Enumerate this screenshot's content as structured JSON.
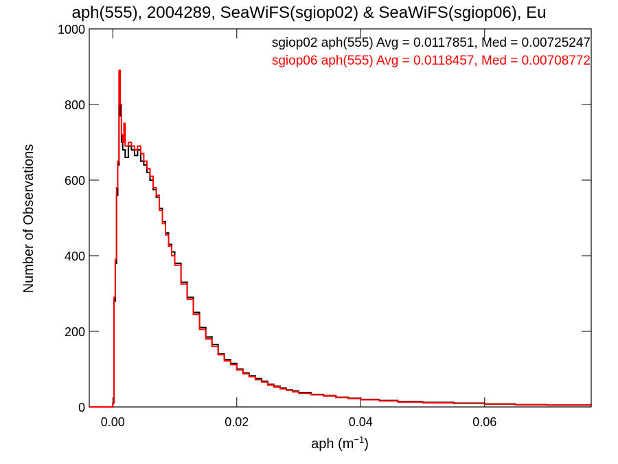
{
  "page": {
    "title": "aph(555), 2004289, SeaWiFS(sgiop02) & SeaWiFS(sgiop06), Eu"
  },
  "chart_data": {
    "type": "line",
    "style": "histogram-step",
    "xlabel": "aph (m",
    "xlabel_sup": "−1",
    "xlabel_close": ")",
    "ylabel": "Number of Observations",
    "xlim": [
      -0.0038,
      0.0772
    ],
    "ylim": [
      0,
      1000
    ],
    "x_ticks": [
      0.0,
      0.02,
      0.04,
      0.06
    ],
    "x_tick_labels": [
      "0.00",
      "0.02",
      "0.04",
      "0.06"
    ],
    "y_ticks": [
      0,
      200,
      400,
      600,
      800,
      1000
    ],
    "y_tick_labels": [
      "0",
      "200",
      "400",
      "600",
      "800",
      "1000"
    ],
    "grid": false,
    "legend_position": "top-right",
    "series": [
      {
        "name": "sgiop02",
        "color": "#000000",
        "stats_label": "sgiop02 aph(555) Avg = 0.0117851, Med = 0.00725247",
        "x": [
          -0.0038,
          0.0,
          0.0002,
          0.0004,
          0.0006,
          0.0008,
          0.001,
          0.0012,
          0.0014,
          0.0016,
          0.0018,
          0.002,
          0.0025,
          0.003,
          0.0035,
          0.004,
          0.0045,
          0.005,
          0.0055,
          0.006,
          0.0065,
          0.007,
          0.0075,
          0.008,
          0.0085,
          0.009,
          0.0095,
          0.01,
          0.011,
          0.012,
          0.013,
          0.014,
          0.015,
          0.016,
          0.017,
          0.018,
          0.019,
          0.02,
          0.021,
          0.022,
          0.023,
          0.024,
          0.025,
          0.026,
          0.027,
          0.028,
          0.029,
          0.03,
          0.032,
          0.034,
          0.036,
          0.038,
          0.04,
          0.043,
          0.046,
          0.05,
          0.055,
          0.06,
          0.065,
          0.07,
          0.0772
        ],
        "values": [
          0,
          10,
          280,
          380,
          560,
          640,
          800,
          770,
          700,
          680,
          680,
          660,
          690,
          680,
          665,
          680,
          650,
          640,
          620,
          600,
          575,
          555,
          525,
          490,
          460,
          430,
          410,
          380,
          330,
          290,
          250,
          210,
          185,
          165,
          140,
          125,
          115,
          100,
          90,
          82,
          75,
          68,
          60,
          55,
          50,
          45,
          42,
          38,
          33,
          30,
          26,
          23,
          20,
          17,
          14,
          12,
          10,
          8,
          6,
          5,
          4
        ]
      },
      {
        "name": "sgiop06",
        "color": "#ff0000",
        "stats_label": "sgiop06 aph(555) Avg = 0.0118457, Med = 0.00708772",
        "x": [
          -0.0038,
          0.0,
          0.0002,
          0.0004,
          0.0006,
          0.0008,
          0.001,
          0.0012,
          0.0014,
          0.0016,
          0.0018,
          0.002,
          0.0025,
          0.003,
          0.0035,
          0.004,
          0.0045,
          0.005,
          0.0055,
          0.006,
          0.0065,
          0.007,
          0.0075,
          0.008,
          0.0085,
          0.009,
          0.0095,
          0.01,
          0.011,
          0.012,
          0.013,
          0.014,
          0.015,
          0.016,
          0.017,
          0.018,
          0.019,
          0.02,
          0.021,
          0.022,
          0.023,
          0.024,
          0.025,
          0.026,
          0.027,
          0.028,
          0.029,
          0.03,
          0.032,
          0.034,
          0.036,
          0.038,
          0.04,
          0.043,
          0.046,
          0.05,
          0.055,
          0.06,
          0.065,
          0.07,
          0.0772
        ],
        "values": [
          0,
          10,
          290,
          390,
          580,
          650,
          890,
          800,
          720,
          700,
          750,
          690,
          700,
          690,
          680,
          690,
          670,
          650,
          630,
          610,
          580,
          560,
          520,
          485,
          455,
          425,
          400,
          375,
          325,
          285,
          245,
          205,
          180,
          160,
          138,
          122,
          112,
          98,
          88,
          80,
          72,
          66,
          58,
          53,
          48,
          44,
          40,
          36,
          32,
          29,
          25,
          22,
          19,
          16,
          13,
          11,
          9,
          7,
          6,
          5,
          4
        ]
      }
    ]
  }
}
